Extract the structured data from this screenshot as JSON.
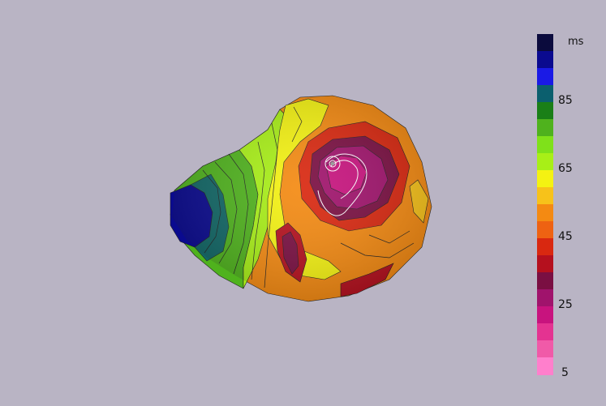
{
  "colorbar": {
    "unit": "ms",
    "tick_labels": [
      "85",
      "65",
      "45",
      "25",
      "5"
    ],
    "colors": [
      "#0b0b3d",
      "#0a0a8f",
      "#1a1ae6",
      "#0b5f6e",
      "#1a7f17",
      "#4fb21d",
      "#7fe11a",
      "#a8ef17",
      "#f4f212",
      "#f7c21a",
      "#f48a12",
      "#ee6212",
      "#d92810",
      "#b5101e",
      "#7a0f42",
      "#a0136c",
      "#c8137e",
      "#e43391",
      "#f05aa8",
      "#ff7fcc"
    ]
  },
  "legend_colors": {
    "background": "#b9b4c4",
    "contour_line": "#222222",
    "highlight_contour": "#ffffff"
  }
}
